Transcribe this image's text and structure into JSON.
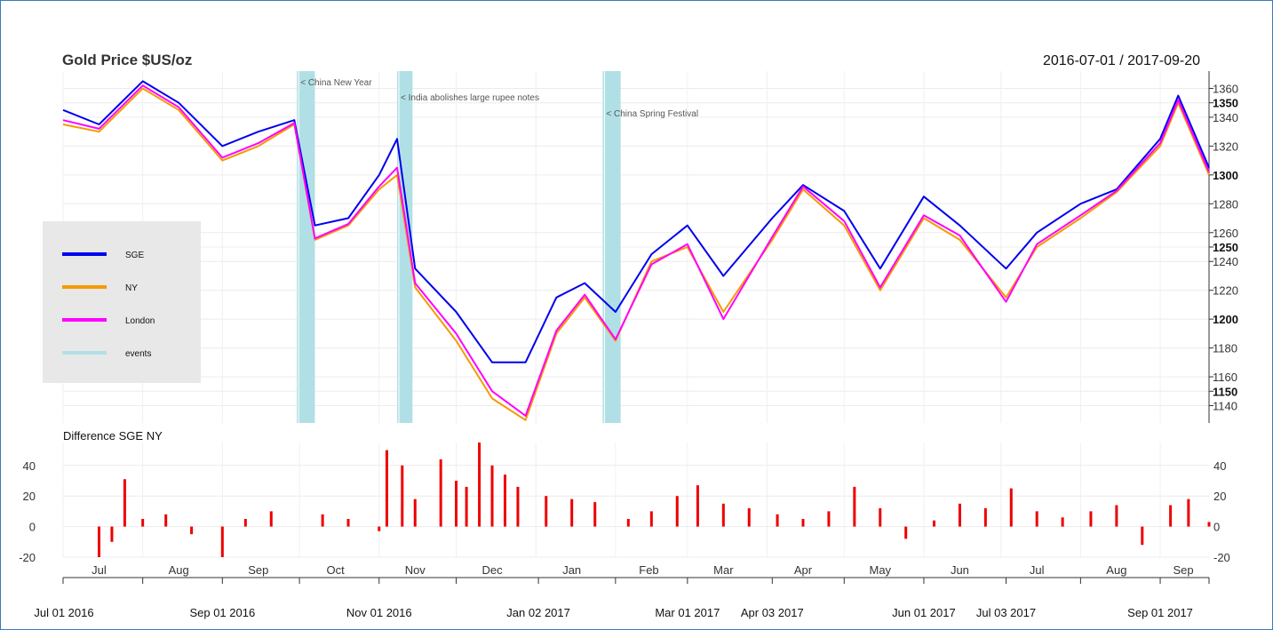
{
  "chart_data": [
    {
      "type": "line",
      "title": "Gold Price $US/oz",
      "date_range": "2016-07-01 / 2017-09-20",
      "ylim": [
        1128,
        1372
      ],
      "y_ticks": [
        1140,
        1150,
        1160,
        1180,
        1200,
        1220,
        1240,
        1250,
        1260,
        1280,
        1300,
        1320,
        1340,
        1350,
        1360
      ],
      "y_ticks_bold": [
        1150,
        1200,
        1250,
        1300,
        1350
      ],
      "grid": true,
      "legend_position": "left",
      "legend": [
        {
          "name": "SGE",
          "color": "#0000ee"
        },
        {
          "name": "NY",
          "color": "#f59a00"
        },
        {
          "name": "London",
          "color": "#ff00ff"
        },
        {
          "name": "events",
          "color": "#b0e0e6"
        }
      ],
      "events": [
        {
          "label": "< China New Year",
          "start": "2016-09-30",
          "end": "2016-10-07"
        },
        {
          "label": "< India abolishes large rupee notes",
          "start": "2016-11-08",
          "end": "2016-11-14"
        },
        {
          "label": "< China Spring Festival",
          "start": "2017-01-27",
          "end": "2017-02-03"
        }
      ],
      "x_dates": [
        "2016-07-01",
        "2016-07-15",
        "2016-08-01",
        "2016-08-15",
        "2016-09-01",
        "2016-09-15",
        "2016-09-29",
        "2016-10-07",
        "2016-10-20",
        "2016-11-01",
        "2016-11-08",
        "2016-11-15",
        "2016-12-01",
        "2016-12-15",
        "2016-12-28",
        "2017-01-09",
        "2017-01-20",
        "2017-02-01",
        "2017-02-15",
        "2017-03-01",
        "2017-03-15",
        "2017-04-03",
        "2017-04-15",
        "2017-05-01",
        "2017-05-15",
        "2017-06-01",
        "2017-06-15",
        "2017-07-03",
        "2017-07-15",
        "2017-08-01",
        "2017-08-15",
        "2017-09-01",
        "2017-09-08",
        "2017-09-20"
      ],
      "series": [
        {
          "name": "SGE",
          "color": "#0000ee",
          "values": [
            1345,
            1335,
            1365,
            1350,
            1320,
            1330,
            1338,
            1265,
            1270,
            1300,
            1325,
            1235,
            1205,
            1170,
            1170,
            1215,
            1225,
            1205,
            1245,
            1265,
            1230,
            1270,
            1293,
            1275,
            1235,
            1285,
            1265,
            1235,
            1260,
            1280,
            1290,
            1325,
            1355,
            1305
          ]
        },
        {
          "name": "NY",
          "color": "#f59a00",
          "values": [
            1335,
            1330,
            1360,
            1345,
            1310,
            1320,
            1335,
            1255,
            1265,
            1290,
            1300,
            1222,
            1185,
            1145,
            1130,
            1190,
            1215,
            1185,
            1240,
            1250,
            1205,
            1255,
            1290,
            1265,
            1220,
            1270,
            1255,
            1215,
            1250,
            1270,
            1288,
            1320,
            1350,
            1300
          ]
        },
        {
          "name": "London",
          "color": "#ff00ff",
          "values": [
            1338,
            1332,
            1362,
            1347,
            1312,
            1322,
            1336,
            1256,
            1266,
            1292,
            1305,
            1225,
            1190,
            1150,
            1133,
            1192,
            1217,
            1186,
            1238,
            1252,
            1200,
            1257,
            1292,
            1268,
            1222,
            1272,
            1258,
            1212,
            1252,
            1272,
            1289,
            1322,
            1352,
            1302
          ]
        }
      ]
    },
    {
      "type": "bar",
      "title": "Difference  SGE  NY",
      "ylim": [
        -20,
        55
      ],
      "y_ticks": [
        -20,
        0,
        20,
        40
      ],
      "color": "#ee0000",
      "x_dates": [
        "2016-07-15",
        "2016-07-20",
        "2016-07-25",
        "2016-08-01",
        "2016-08-10",
        "2016-08-20",
        "2016-09-01",
        "2016-09-10",
        "2016-09-20",
        "2016-10-10",
        "2016-10-20",
        "2016-11-01",
        "2016-11-04",
        "2016-11-10",
        "2016-11-15",
        "2016-11-25",
        "2016-12-01",
        "2016-12-05",
        "2016-12-10",
        "2016-12-15",
        "2016-12-20",
        "2016-12-25",
        "2017-01-05",
        "2017-01-15",
        "2017-01-24",
        "2017-02-06",
        "2017-02-15",
        "2017-02-25",
        "2017-03-05",
        "2017-03-15",
        "2017-03-25",
        "2017-04-05",
        "2017-04-15",
        "2017-04-25",
        "2017-05-05",
        "2017-05-15",
        "2017-05-25",
        "2017-06-05",
        "2017-06-15",
        "2017-06-25",
        "2017-07-05",
        "2017-07-15",
        "2017-07-25",
        "2017-08-05",
        "2017-08-15",
        "2017-08-25",
        "2017-09-05",
        "2017-09-12",
        "2017-09-20"
      ],
      "values": [
        -20,
        -10,
        31,
        5,
        8,
        -5,
        -20,
        5,
        10,
        8,
        5,
        -3,
        50,
        40,
        18,
        44,
        30,
        26,
        55,
        40,
        34,
        26,
        20,
        18,
        16,
        5,
        10,
        20,
        27,
        15,
        12,
        8,
        5,
        10,
        26,
        12,
        -8,
        4,
        15,
        12,
        25,
        10,
        6,
        10,
        14,
        -12,
        14,
        18,
        3
      ]
    }
  ],
  "x_month_labels": [
    "Jul",
    "Aug",
    "Sep",
    "Oct",
    "Nov",
    "Dec",
    "Jan",
    "Feb",
    "Mar",
    "Apr",
    "May",
    "Jun",
    "Jul",
    "Aug",
    "Sep"
  ],
  "x_date_labels": [
    "Jul 01 2016",
    "Sep 01 2016",
    "Nov 01 2016",
    "Jan 02 2017",
    "Mar 01 2017",
    "Apr 03 2017",
    "Jun 01 2017",
    "Jul 03 2017",
    "Sep 01 2017"
  ]
}
